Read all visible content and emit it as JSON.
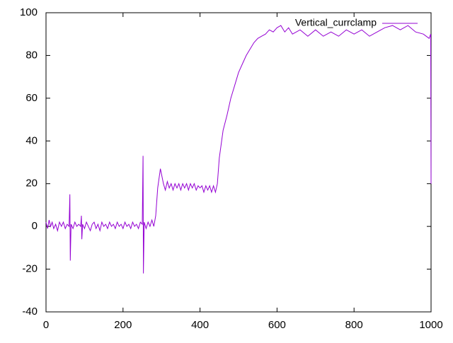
{
  "chart_data": {
    "type": "line",
    "x": [
      0,
      4,
      8,
      12,
      16,
      20,
      25,
      30,
      35,
      40,
      45,
      50,
      55,
      60,
      62,
      63,
      65,
      70,
      75,
      80,
      85,
      90,
      92,
      93,
      95,
      100,
      105,
      110,
      115,
      120,
      125,
      130,
      135,
      140,
      145,
      150,
      155,
      160,
      165,
      170,
      175,
      180,
      185,
      190,
      195,
      200,
      205,
      210,
      215,
      220,
      225,
      230,
      235,
      240,
      245,
      250,
      252,
      253,
      255,
      260,
      265,
      270,
      275,
      280,
      285,
      290,
      297,
      305,
      310,
      315,
      320,
      325,
      330,
      335,
      340,
      345,
      350,
      355,
      360,
      365,
      370,
      375,
      380,
      385,
      390,
      395,
      400,
      405,
      410,
      415,
      420,
      425,
      430,
      435,
      440,
      445,
      450,
      460,
      470,
      480,
      490,
      500,
      510,
      520,
      530,
      540,
      550,
      560,
      570,
      580,
      590,
      600,
      610,
      620,
      630,
      640,
      660,
      680,
      700,
      720,
      740,
      760,
      780,
      800,
      820,
      840,
      860,
      880,
      900,
      920,
      940,
      960,
      980,
      995,
      999,
      1000
    ],
    "series": [
      {
        "name": "Vertical_currclamp",
        "color": "#9400d3",
        "values": [
          2,
          -1,
          3,
          0,
          2,
          -1,
          1,
          -2,
          2,
          0,
          2,
          -1,
          1,
          0,
          15,
          -16,
          1,
          -1,
          2,
          0,
          1,
          0,
          5,
          -6,
          1,
          -1,
          2,
          0,
          -2,
          1,
          2,
          -1,
          1,
          -2,
          2,
          0,
          1,
          -1,
          2,
          0,
          1,
          -1,
          2,
          0,
          1,
          -1,
          2,
          0,
          1,
          -1,
          2,
          0,
          1,
          -1,
          2,
          1,
          33,
          -22,
          2,
          -1,
          2,
          0,
          3,
          0,
          5,
          18,
          27,
          20,
          17,
          21,
          18,
          20,
          17,
          20,
          18,
          20,
          17,
          20,
          18,
          20,
          17,
          20,
          18,
          20,
          17,
          19,
          18,
          19,
          16,
          19,
          17,
          19,
          16,
          19,
          16,
          20,
          32,
          45,
          52,
          60,
          66,
          72,
          76,
          80,
          83,
          86,
          88,
          89,
          90,
          92,
          91,
          93,
          94,
          91,
          93,
          90,
          92,
          89,
          92,
          89,
          91,
          89,
          92,
          90,
          92,
          89,
          91,
          93,
          94,
          92,
          94,
          91,
          90,
          88,
          90,
          20
        ]
      }
    ],
    "xlim": [
      0,
      1000
    ],
    "xticks": [
      0,
      200,
      400,
      600,
      800,
      1000
    ],
    "ylim": [
      -40,
      100
    ],
    "yticks": [
      -40,
      -20,
      0,
      20,
      40,
      60,
      80,
      100
    ]
  }
}
